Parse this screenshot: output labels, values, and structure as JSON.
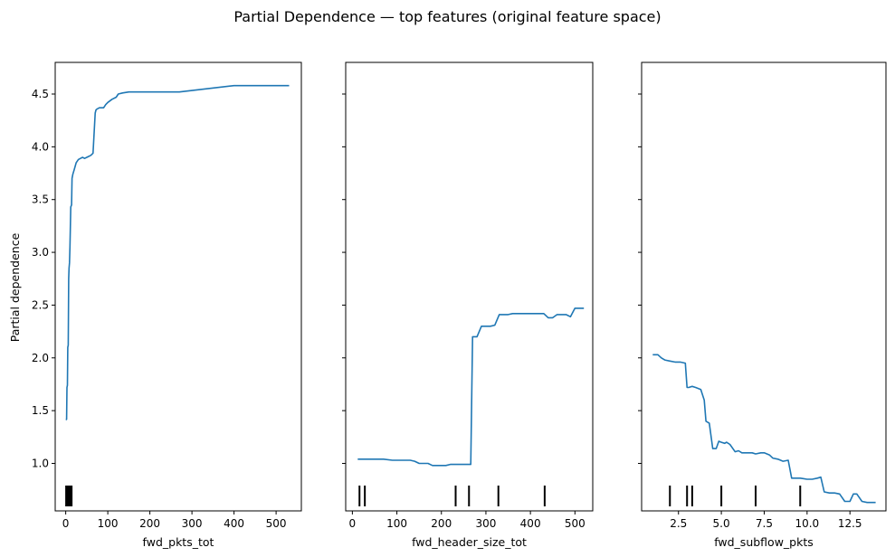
{
  "figure": {
    "title": "Partial Dependence — top features (original feature space)",
    "ylabel": "Partial dependence",
    "line_color": "#1f77b4",
    "rug_color": "#000000"
  },
  "chart_data": [
    {
      "type": "line",
      "xlabel": "fwd_pkts_tot",
      "ylabel": "Partial dependence",
      "xlim": [
        -25,
        560
      ],
      "ylim": [
        0.55,
        4.8
      ],
      "xticks": [
        0,
        100,
        200,
        300,
        400,
        500
      ],
      "yticks": [
        1.0,
        1.5,
        2.0,
        2.5,
        3.0,
        3.5,
        4.0,
        4.5
      ],
      "ytick_labels": [
        "1.0",
        "1.5",
        "2.0",
        "2.5",
        "3.0",
        "3.5",
        "4.0",
        "4.5"
      ],
      "x": [
        1,
        2,
        3,
        4,
        5,
        6,
        7,
        8,
        9,
        10,
        12,
        14,
        15,
        17,
        20,
        22,
        25,
        30,
        35,
        40,
        45,
        50,
        55,
        60,
        65,
        70,
        72,
        75,
        80,
        85,
        90,
        95,
        100,
        110,
        120,
        125,
        135,
        150,
        165,
        200,
        270,
        400,
        531
      ],
      "y": [
        1.41,
        1.42,
        1.72,
        1.74,
        2.1,
        2.12,
        2.75,
        2.85,
        2.9,
        3.05,
        3.43,
        3.45,
        3.7,
        3.74,
        3.78,
        3.81,
        3.85,
        3.88,
        3.89,
        3.9,
        3.89,
        3.9,
        3.91,
        3.92,
        3.94,
        4.32,
        4.35,
        4.36,
        4.37,
        4.37,
        4.37,
        4.4,
        4.42,
        4.45,
        4.47,
        4.5,
        4.51,
        4.52,
        4.52,
        4.52,
        4.52,
        4.58,
        4.58
      ],
      "rug": [
        1,
        3,
        5,
        7,
        9,
        11,
        14
      ]
    },
    {
      "type": "line",
      "xlabel": "fwd_header_size_tot",
      "ylabel": "",
      "xlim": [
        -15,
        540
      ],
      "ylim": [
        0.55,
        4.8
      ],
      "xticks": [
        0,
        100,
        200,
        300,
        400,
        500
      ],
      "yticks": [
        1.0,
        1.5,
        2.0,
        2.5,
        3.0,
        3.5,
        4.0,
        4.5
      ],
      "x": [
        12,
        30,
        50,
        60,
        70,
        90,
        100,
        110,
        120,
        130,
        140,
        150,
        160,
        170,
        180,
        190,
        200,
        210,
        220,
        230,
        240,
        250,
        260,
        266,
        270,
        275,
        280,
        290,
        300,
        310,
        320,
        330,
        340,
        350,
        360,
        380,
        400,
        420,
        430,
        440,
        450,
        460,
        470,
        480,
        490,
        500,
        510,
        520
      ],
      "y": [
        1.04,
        1.04,
        1.04,
        1.04,
        1.04,
        1.03,
        1.03,
        1.03,
        1.03,
        1.03,
        1.02,
        1.0,
        1.0,
        1.0,
        0.98,
        0.98,
        0.98,
        0.98,
        0.99,
        0.99,
        0.99,
        0.99,
        0.99,
        0.99,
        2.2,
        2.2,
        2.2,
        2.3,
        2.3,
        2.3,
        2.31,
        2.41,
        2.41,
        2.41,
        2.42,
        2.42,
        2.42,
        2.42,
        2.42,
        2.38,
        2.38,
        2.41,
        2.41,
        2.41,
        2.39,
        2.47,
        2.47,
        2.47
      ],
      "rug": [
        16,
        28,
        232,
        262,
        328,
        432
      ]
    },
    {
      "type": "line",
      "xlabel": "fwd_subflow_pkts",
      "ylabel": "",
      "xlim": [
        0.35,
        14.6
      ],
      "ylim": [
        0.55,
        4.8
      ],
      "xticks": [
        2.5,
        5.0,
        7.5,
        10.0,
        12.5
      ],
      "xtick_labels": [
        "2.5",
        "5.0",
        "7.5",
        "10.0",
        "12.5"
      ],
      "yticks": [
        1.0,
        1.5,
        2.0,
        2.5,
        3.0,
        3.5,
        4.0,
        4.5
      ],
      "x": [
        1.0,
        1.3,
        1.5,
        1.7,
        2.0,
        2.3,
        2.6,
        2.9,
        3.0,
        3.1,
        3.3,
        3.5,
        3.8,
        4.0,
        4.1,
        4.3,
        4.5,
        4.7,
        4.85,
        5.0,
        5.2,
        5.3,
        5.5,
        5.8,
        6.0,
        6.2,
        6.5,
        6.8,
        7.0,
        7.3,
        7.5,
        7.8,
        8.0,
        8.3,
        8.6,
        8.9,
        9.1,
        9.4,
        9.6,
        10.0,
        10.3,
        10.6,
        10.8,
        11.0,
        11.3,
        11.6,
        11.9,
        12.2,
        12.5,
        12.7,
        12.9,
        13.2,
        13.5,
        13.8,
        14.0
      ],
      "y": [
        2.03,
        2.03,
        2.0,
        1.98,
        1.97,
        1.96,
        1.96,
        1.95,
        1.72,
        1.72,
        1.73,
        1.72,
        1.7,
        1.6,
        1.4,
        1.38,
        1.14,
        1.14,
        1.21,
        1.2,
        1.19,
        1.2,
        1.18,
        1.11,
        1.12,
        1.1,
        1.1,
        1.1,
        1.09,
        1.1,
        1.1,
        1.08,
        1.05,
        1.04,
        1.02,
        1.03,
        0.86,
        0.86,
        0.86,
        0.85,
        0.85,
        0.86,
        0.87,
        0.73,
        0.72,
        0.72,
        0.71,
        0.64,
        0.64,
        0.71,
        0.71,
        0.64,
        0.63,
        0.63,
        0.63
      ],
      "rug": [
        2.0,
        3.0,
        3.3,
        5.0,
        7.0,
        9.6
      ]
    }
  ]
}
